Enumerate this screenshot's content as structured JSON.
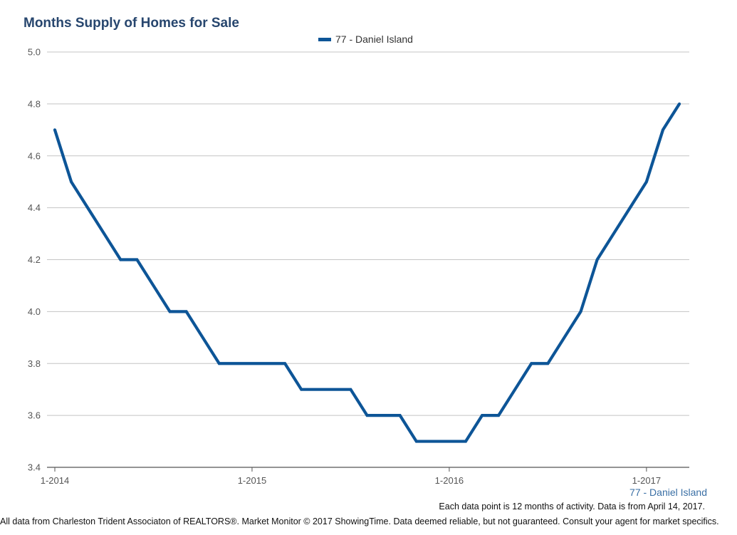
{
  "chart_data": {
    "type": "line",
    "title": "Months Supply of Homes for Sale",
    "legend": [
      "77 - Daniel Island"
    ],
    "legend_position": "top-center",
    "xlabel": "77 - Daniel Island",
    "ylabel": "",
    "ylim": [
      3.4,
      5.0
    ],
    "yticks": [
      "5.0",
      "4.8",
      "4.6",
      "4.4",
      "4.2",
      "4.0",
      "3.8",
      "3.6",
      "3.4"
    ],
    "xticks": [
      "1-2014",
      "1-2015",
      "1-2016",
      "1-2017"
    ],
    "x_months_from_jan_2014": [
      0,
      1,
      2,
      3,
      4,
      5,
      6,
      7,
      8,
      9,
      10,
      11,
      12,
      13,
      14,
      15,
      16,
      17,
      18,
      19,
      20,
      21,
      22,
      23,
      24,
      25,
      26,
      27,
      28,
      29,
      30,
      31,
      32,
      33,
      34,
      35,
      36,
      37,
      38
    ],
    "series": [
      {
        "name": "77 - Daniel Island",
        "color": "#0d5597",
        "values": [
          4.7,
          4.5,
          4.4,
          4.3,
          4.2,
          4.2,
          4.1,
          4.0,
          4.0,
          3.9,
          3.8,
          3.8,
          3.8,
          3.8,
          3.8,
          3.7,
          3.7,
          3.7,
          3.7,
          3.6,
          3.6,
          3.6,
          3.5,
          3.5,
          3.5,
          3.5,
          3.6,
          3.6,
          3.7,
          3.8,
          3.8,
          3.9,
          4.0,
          4.2,
          4.3,
          4.4,
          4.5,
          4.7,
          4.8
        ]
      }
    ],
    "grid": true
  },
  "note": "Each data point is 12 months of activity. Data is from April 14, 2017.",
  "footer": "All data from Charleston Trident Associaton of REALTORS®. Market Monitor © 2017 ShowingTime. Data deemed reliable, but not guaranteed. Consult your agent for market specifics."
}
